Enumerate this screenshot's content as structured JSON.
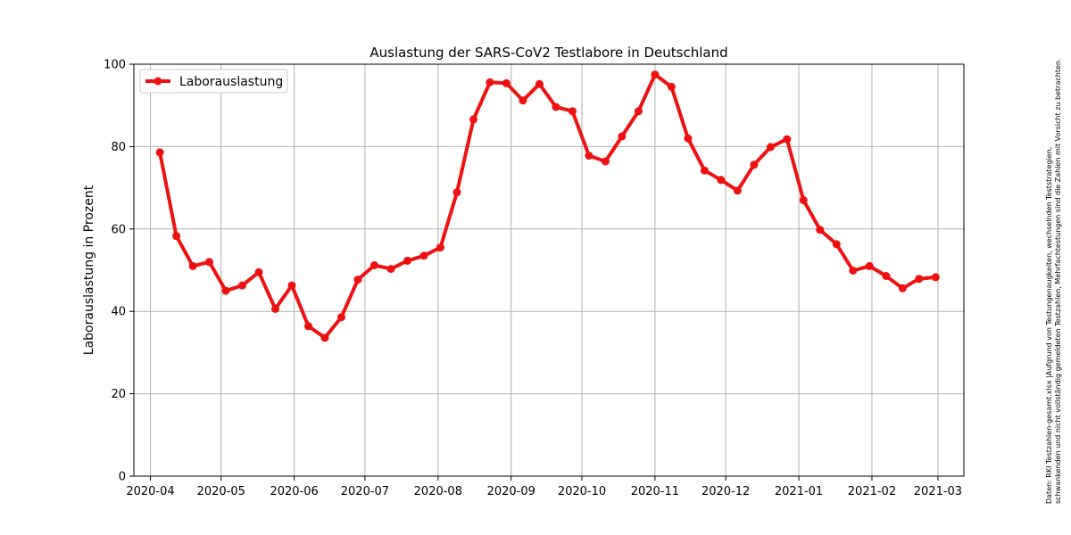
{
  "chart_data": {
    "type": "line",
    "title": "Auslastung der SARS-CoV2 Testlabore in Deutschland",
    "xlabel": "",
    "ylabel": "Laborauslastung in Prozent",
    "ylim": [
      0,
      100
    ],
    "yticks": [
      0,
      20,
      40,
      60,
      80,
      100
    ],
    "xlim": [
      "2020-03-25",
      "2021-03-12"
    ],
    "xticks": [
      "2020-04-01",
      "2020-05-01",
      "2020-06-01",
      "2020-07-01",
      "2020-08-01",
      "2020-09-01",
      "2020-10-01",
      "2020-11-01",
      "2020-12-01",
      "2021-01-01",
      "2021-02-01",
      "2021-03-01"
    ],
    "xtick_labels": [
      "2020-04",
      "2020-05",
      "2020-06",
      "2020-07",
      "2020-08",
      "2020-09",
      "2020-10",
      "2020-11",
      "2020-12",
      "2021-01",
      "2021-02",
      "2021-03"
    ],
    "grid": true,
    "legend_position": "top-left",
    "series": [
      {
        "name": "Laborauslastung",
        "color": "#ee1111",
        "x": [
          "2020-04-05",
          "2020-04-12",
          "2020-04-19",
          "2020-04-26",
          "2020-05-03",
          "2020-05-10",
          "2020-05-17",
          "2020-05-24",
          "2020-05-31",
          "2020-06-07",
          "2020-06-14",
          "2020-06-21",
          "2020-06-28",
          "2020-07-05",
          "2020-07-12",
          "2020-07-19",
          "2020-07-26",
          "2020-08-02",
          "2020-08-09",
          "2020-08-16",
          "2020-08-23",
          "2020-08-30",
          "2020-09-06",
          "2020-09-13",
          "2020-09-20",
          "2020-09-27",
          "2020-10-04",
          "2020-10-11",
          "2020-10-18",
          "2020-10-25",
          "2020-11-01",
          "2020-11-08",
          "2020-11-15",
          "2020-11-22",
          "2020-11-29",
          "2020-12-06",
          "2020-12-13",
          "2020-12-20",
          "2020-12-27",
          "2021-01-03",
          "2021-01-10",
          "2021-01-17",
          "2021-01-24",
          "2021-01-31",
          "2021-02-07",
          "2021-02-14",
          "2021-02-21",
          "2021-02-28"
        ],
        "y": [
          78.6,
          58.3,
          51.0,
          52.0,
          45.0,
          46.3,
          49.5,
          40.6,
          46.3,
          36.4,
          33.6,
          38.6,
          47.7,
          51.2,
          50.3,
          52.3,
          53.5,
          55.5,
          68.9,
          86.6,
          95.6,
          95.4,
          91.2,
          95.2,
          89.6,
          88.6,
          77.8,
          76.4,
          82.5,
          88.6,
          97.5,
          94.5,
          82.0,
          74.2,
          71.9,
          69.3,
          75.6,
          79.9,
          81.8,
          67.0,
          59.8,
          56.3,
          49.9,
          51.0,
          48.6,
          45.6,
          47.9,
          48.3
        ]
      }
    ],
    "annotation": "Daten: RKI Testzahlen-gesamt.xlsx |Aufgrund von Testungenaugkeiten, wechselnden Teststrategien, schwankenden und nicht vollständig gemeldeten Testzahlen, Mehrfachtestungen sind die Zahlen mit Vorsicht zu betrachten.",
    "annotation_lines": [
      "Daten: RKI Testzahlen-gesamt.xlsx |Aufgrund von Testungenaugkeiten, wechselnden Teststrategien,",
      "schwankenden und nicht vollständig gemeldeten Testzahlen, Mehrfachtestungen sind die Zahlen mit Vorsicht zu betrachten."
    ]
  }
}
